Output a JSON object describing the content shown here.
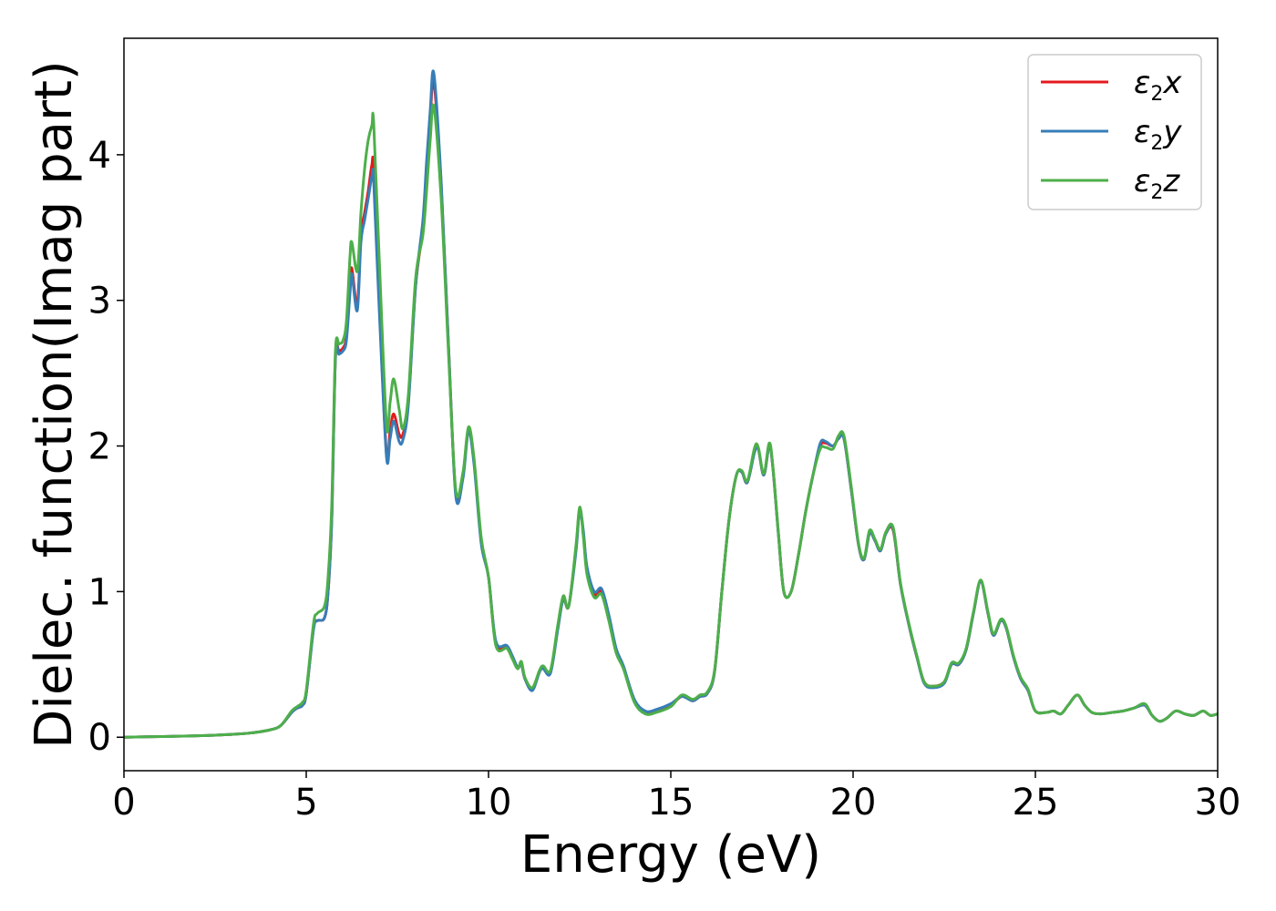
{
  "chart_data": {
    "type": "line",
    "xlabel": "Energy (eV)",
    "ylabel": "Dielec. function(Imag part)",
    "xlim": [
      0,
      30
    ],
    "ylim": [
      -0.23,
      4.8
    ],
    "xticks": [
      "0",
      "5",
      "10",
      "15",
      "20",
      "25",
      "30"
    ],
    "yticks": [
      "0",
      "1",
      "2",
      "3",
      "4"
    ],
    "grid": false,
    "legend_placement": "top-right",
    "legend": [
      {
        "symbol": "ε",
        "sub": "2",
        "suffix": "x"
      },
      {
        "symbol": "ε",
        "sub": "2",
        "suffix": "y"
      },
      {
        "symbol": "ε",
        "sub": "2",
        "suffix": "z"
      }
    ],
    "series": [
      {
        "name": "ε2x",
        "color": "#e41a1c",
        "x": [
          0,
          1,
          2,
          3,
          3.5,
          4,
          4.3,
          4.6,
          4.75,
          4.9,
          5.0,
          5.2,
          5.3,
          5.5,
          5.6,
          5.7,
          5.8,
          5.9,
          6.0,
          6.1,
          6.2,
          6.25,
          6.4,
          6.5,
          6.6,
          6.7,
          6.8,
          6.85,
          7.0,
          7.2,
          7.3,
          7.4,
          7.55,
          7.65,
          7.8,
          8.0,
          8.2,
          8.3,
          8.4,
          8.5,
          8.7,
          8.9,
          9.1,
          9.3,
          9.45,
          9.6,
          9.8,
          10.0,
          10.2,
          10.5,
          10.65,
          10.8,
          10.9,
          11.0,
          11.2,
          11.4,
          11.5,
          11.7,
          11.9,
          12.05,
          12.2,
          12.4,
          12.5,
          12.6,
          12.7,
          12.9,
          13.1,
          13.3,
          13.5,
          13.7,
          14.0,
          14.3,
          14.6,
          15.0,
          15.3,
          15.6,
          15.8,
          16.0,
          16.2,
          16.4,
          16.6,
          16.8,
          16.95,
          17.1,
          17.3,
          17.4,
          17.55,
          17.7,
          17.8,
          17.95,
          18.1,
          18.3,
          18.5,
          18.7,
          18.9,
          19.1,
          19.25,
          19.45,
          19.6,
          19.75,
          19.95,
          20.15,
          20.3,
          20.45,
          20.6,
          20.75,
          20.9,
          21.1,
          21.3,
          21.55,
          21.75,
          21.95,
          22.2,
          22.5,
          22.7,
          22.9,
          23.1,
          23.3,
          23.5,
          23.7,
          23.85,
          24.05,
          24.2,
          24.4,
          24.6,
          24.8,
          25.0,
          25.3,
          25.5,
          25.7,
          25.9,
          26.15,
          26.35,
          26.55,
          26.8,
          27.1,
          27.4,
          27.7,
          28.0,
          28.2,
          28.4,
          28.6,
          28.85,
          29.1,
          29.35,
          29.6,
          29.8,
          30.0
        ],
        "y": [
          0.0,
          0.005,
          0.01,
          0.02,
          0.03,
          0.05,
          0.08,
          0.17,
          0.2,
          0.22,
          0.3,
          0.75,
          0.8,
          0.82,
          1.0,
          1.5,
          2.6,
          2.65,
          2.67,
          2.75,
          3.1,
          3.22,
          2.97,
          3.45,
          3.6,
          3.75,
          3.93,
          3.9,
          3.0,
          1.95,
          2.1,
          2.22,
          2.08,
          2.08,
          2.3,
          3.1,
          3.5,
          3.9,
          4.25,
          4.5,
          3.8,
          2.7,
          1.68,
          1.8,
          2.12,
          1.9,
          1.35,
          1.1,
          0.65,
          0.62,
          0.55,
          0.48,
          0.5,
          0.4,
          0.33,
          0.45,
          0.48,
          0.45,
          0.75,
          0.95,
          0.9,
          1.3,
          1.57,
          1.4,
          1.15,
          0.98,
          1.0,
          0.82,
          0.6,
          0.48,
          0.25,
          0.17,
          0.18,
          0.22,
          0.28,
          0.25,
          0.28,
          0.3,
          0.45,
          1.0,
          1.5,
          1.8,
          1.82,
          1.75,
          1.97,
          1.98,
          1.8,
          2.0,
          1.85,
          1.4,
          1.0,
          1.0,
          1.25,
          1.55,
          1.8,
          2.0,
          2.02,
          2.0,
          2.05,
          2.05,
          1.7,
          1.32,
          1.22,
          1.4,
          1.35,
          1.28,
          1.4,
          1.42,
          1.05,
          0.75,
          0.55,
          0.38,
          0.35,
          0.38,
          0.5,
          0.5,
          0.6,
          0.85,
          1.07,
          0.85,
          0.7,
          0.8,
          0.75,
          0.55,
          0.4,
          0.32,
          0.18,
          0.17,
          0.18,
          0.16,
          0.22,
          0.29,
          0.22,
          0.17,
          0.16,
          0.17,
          0.18,
          0.2,
          0.22,
          0.15,
          0.11,
          0.13,
          0.18,
          0.16,
          0.15,
          0.18,
          0.15,
          0.16
        ]
      },
      {
        "name": "ε2y",
        "color": "#377eb8",
        "x": [
          0,
          1,
          2,
          3,
          3.5,
          4,
          4.3,
          4.6,
          4.75,
          4.9,
          5.0,
          5.2,
          5.3,
          5.5,
          5.6,
          5.7,
          5.8,
          5.9,
          6.0,
          6.1,
          6.2,
          6.25,
          6.4,
          6.5,
          6.6,
          6.7,
          6.8,
          6.85,
          7.0,
          7.2,
          7.3,
          7.4,
          7.55,
          7.65,
          7.8,
          8.0,
          8.2,
          8.3,
          8.4,
          8.5,
          8.7,
          8.9,
          9.1,
          9.3,
          9.45,
          9.6,
          9.8,
          10.0,
          10.2,
          10.5,
          10.65,
          10.8,
          10.9,
          11.0,
          11.2,
          11.4,
          11.5,
          11.7,
          11.9,
          12.05,
          12.2,
          12.4,
          12.5,
          12.6,
          12.7,
          12.9,
          13.1,
          13.3,
          13.5,
          13.7,
          14.0,
          14.3,
          14.6,
          15.0,
          15.3,
          15.6,
          15.8,
          16.0,
          16.2,
          16.4,
          16.6,
          16.8,
          16.95,
          17.1,
          17.3,
          17.4,
          17.55,
          17.7,
          17.8,
          17.95,
          18.1,
          18.3,
          18.5,
          18.7,
          18.9,
          19.1,
          19.25,
          19.45,
          19.6,
          19.75,
          19.95,
          20.15,
          20.3,
          20.45,
          20.6,
          20.75,
          20.9,
          21.1,
          21.3,
          21.55,
          21.75,
          21.95,
          22.2,
          22.5,
          22.7,
          22.9,
          23.1,
          23.3,
          23.5,
          23.7,
          23.85,
          24.05,
          24.2,
          24.4,
          24.6,
          24.8,
          25.0,
          25.3,
          25.5,
          25.7,
          25.9,
          26.15,
          26.35,
          26.55,
          26.8,
          27.1,
          27.4,
          27.7,
          28.0,
          28.2,
          28.4,
          28.6,
          28.85,
          29.1,
          29.35,
          29.6,
          29.8,
          30.0
        ],
        "y": [
          0.0,
          0.005,
          0.01,
          0.02,
          0.03,
          0.05,
          0.08,
          0.17,
          0.2,
          0.22,
          0.3,
          0.74,
          0.8,
          0.82,
          1.0,
          1.5,
          2.6,
          2.63,
          2.65,
          2.72,
          3.05,
          3.18,
          2.93,
          3.4,
          3.55,
          3.7,
          3.85,
          3.82,
          2.95,
          1.93,
          2.05,
          2.17,
          2.03,
          2.04,
          2.28,
          3.1,
          3.55,
          3.95,
          4.3,
          4.56,
          3.82,
          2.7,
          1.66,
          1.78,
          2.1,
          1.88,
          1.33,
          1.1,
          0.66,
          0.63,
          0.56,
          0.48,
          0.5,
          0.4,
          0.32,
          0.45,
          0.47,
          0.44,
          0.74,
          0.95,
          0.9,
          1.28,
          1.56,
          1.42,
          1.17,
          1.0,
          1.02,
          0.84,
          0.61,
          0.49,
          0.26,
          0.18,
          0.19,
          0.23,
          0.28,
          0.25,
          0.28,
          0.3,
          0.45,
          1.0,
          1.5,
          1.8,
          1.82,
          1.75,
          1.96,
          1.98,
          1.8,
          2.0,
          1.85,
          1.4,
          1.0,
          1.0,
          1.25,
          1.55,
          1.8,
          2.02,
          2.03,
          2.0,
          2.05,
          2.05,
          1.7,
          1.32,
          1.22,
          1.4,
          1.35,
          1.28,
          1.4,
          1.43,
          1.05,
          0.75,
          0.55,
          0.37,
          0.34,
          0.37,
          0.5,
          0.5,
          0.6,
          0.85,
          1.07,
          0.85,
          0.7,
          0.8,
          0.75,
          0.55,
          0.4,
          0.32,
          0.18,
          0.17,
          0.18,
          0.16,
          0.22,
          0.29,
          0.22,
          0.17,
          0.16,
          0.17,
          0.18,
          0.2,
          0.22,
          0.15,
          0.11,
          0.13,
          0.18,
          0.16,
          0.15,
          0.18,
          0.15,
          0.16
        ]
      },
      {
        "name": "ε2z",
        "color": "#4daf4a",
        "x": [
          0,
          1,
          2,
          3,
          3.5,
          4,
          4.3,
          4.6,
          4.75,
          4.9,
          5.0,
          5.2,
          5.3,
          5.5,
          5.6,
          5.7,
          5.8,
          5.9,
          6.0,
          6.1,
          6.2,
          6.25,
          6.4,
          6.5,
          6.6,
          6.7,
          6.8,
          6.85,
          7.0,
          7.2,
          7.3,
          7.4,
          7.55,
          7.65,
          7.8,
          8.0,
          8.2,
          8.3,
          8.4,
          8.5,
          8.7,
          8.9,
          9.1,
          9.3,
          9.45,
          9.6,
          9.8,
          10.0,
          10.2,
          10.5,
          10.65,
          10.8,
          10.9,
          11.0,
          11.2,
          11.4,
          11.5,
          11.7,
          11.9,
          12.05,
          12.2,
          12.4,
          12.5,
          12.6,
          12.7,
          12.9,
          13.1,
          13.3,
          13.5,
          13.7,
          14.0,
          14.3,
          14.6,
          15.0,
          15.3,
          15.6,
          15.8,
          16.0,
          16.2,
          16.4,
          16.6,
          16.8,
          16.95,
          17.1,
          17.3,
          17.4,
          17.55,
          17.7,
          17.8,
          17.95,
          18.1,
          18.3,
          18.5,
          18.7,
          18.9,
          19.1,
          19.25,
          19.45,
          19.6,
          19.75,
          19.95,
          20.15,
          20.3,
          20.45,
          20.6,
          20.75,
          20.9,
          21.1,
          21.3,
          21.55,
          21.75,
          21.95,
          22.2,
          22.5,
          22.7,
          22.9,
          23.1,
          23.3,
          23.5,
          23.7,
          23.85,
          24.05,
          24.2,
          24.4,
          24.6,
          24.8,
          25.0,
          25.3,
          25.5,
          25.7,
          25.9,
          26.15,
          26.35,
          26.55,
          26.8,
          27.1,
          27.4,
          27.7,
          28.0,
          28.2,
          28.4,
          28.6,
          28.85,
          29.1,
          29.35,
          29.6,
          29.8,
          30.0
        ],
        "y": [
          0.0,
          0.005,
          0.01,
          0.02,
          0.03,
          0.05,
          0.08,
          0.18,
          0.21,
          0.24,
          0.32,
          0.78,
          0.85,
          0.9,
          1.1,
          1.6,
          2.65,
          2.7,
          2.72,
          2.85,
          3.3,
          3.4,
          3.2,
          3.6,
          3.9,
          4.1,
          4.2,
          4.22,
          3.3,
          2.15,
          2.3,
          2.46,
          2.25,
          2.12,
          2.35,
          3.15,
          3.45,
          3.75,
          4.1,
          4.33,
          3.7,
          2.65,
          1.7,
          1.82,
          2.13,
          1.92,
          1.37,
          1.1,
          0.63,
          0.61,
          0.54,
          0.47,
          0.52,
          0.41,
          0.34,
          0.46,
          0.49,
          0.46,
          0.77,
          0.97,
          0.9,
          1.32,
          1.58,
          1.38,
          1.12,
          0.96,
          0.98,
          0.8,
          0.58,
          0.47,
          0.24,
          0.16,
          0.17,
          0.21,
          0.29,
          0.26,
          0.29,
          0.31,
          0.46,
          1.0,
          1.5,
          1.8,
          1.83,
          1.76,
          1.99,
          1.99,
          1.81,
          2.02,
          1.86,
          1.41,
          1.0,
          1.0,
          1.25,
          1.55,
          1.8,
          1.98,
          1.99,
          1.98,
          2.07,
          2.07,
          1.72,
          1.33,
          1.23,
          1.42,
          1.36,
          1.29,
          1.41,
          1.44,
          1.06,
          0.76,
          0.56,
          0.38,
          0.35,
          0.38,
          0.51,
          0.51,
          0.61,
          0.86,
          1.08,
          0.86,
          0.71,
          0.81,
          0.76,
          0.56,
          0.41,
          0.33,
          0.18,
          0.17,
          0.18,
          0.16,
          0.22,
          0.29,
          0.22,
          0.17,
          0.16,
          0.17,
          0.18,
          0.2,
          0.23,
          0.15,
          0.11,
          0.13,
          0.18,
          0.16,
          0.15,
          0.18,
          0.15,
          0.16
        ]
      }
    ]
  }
}
